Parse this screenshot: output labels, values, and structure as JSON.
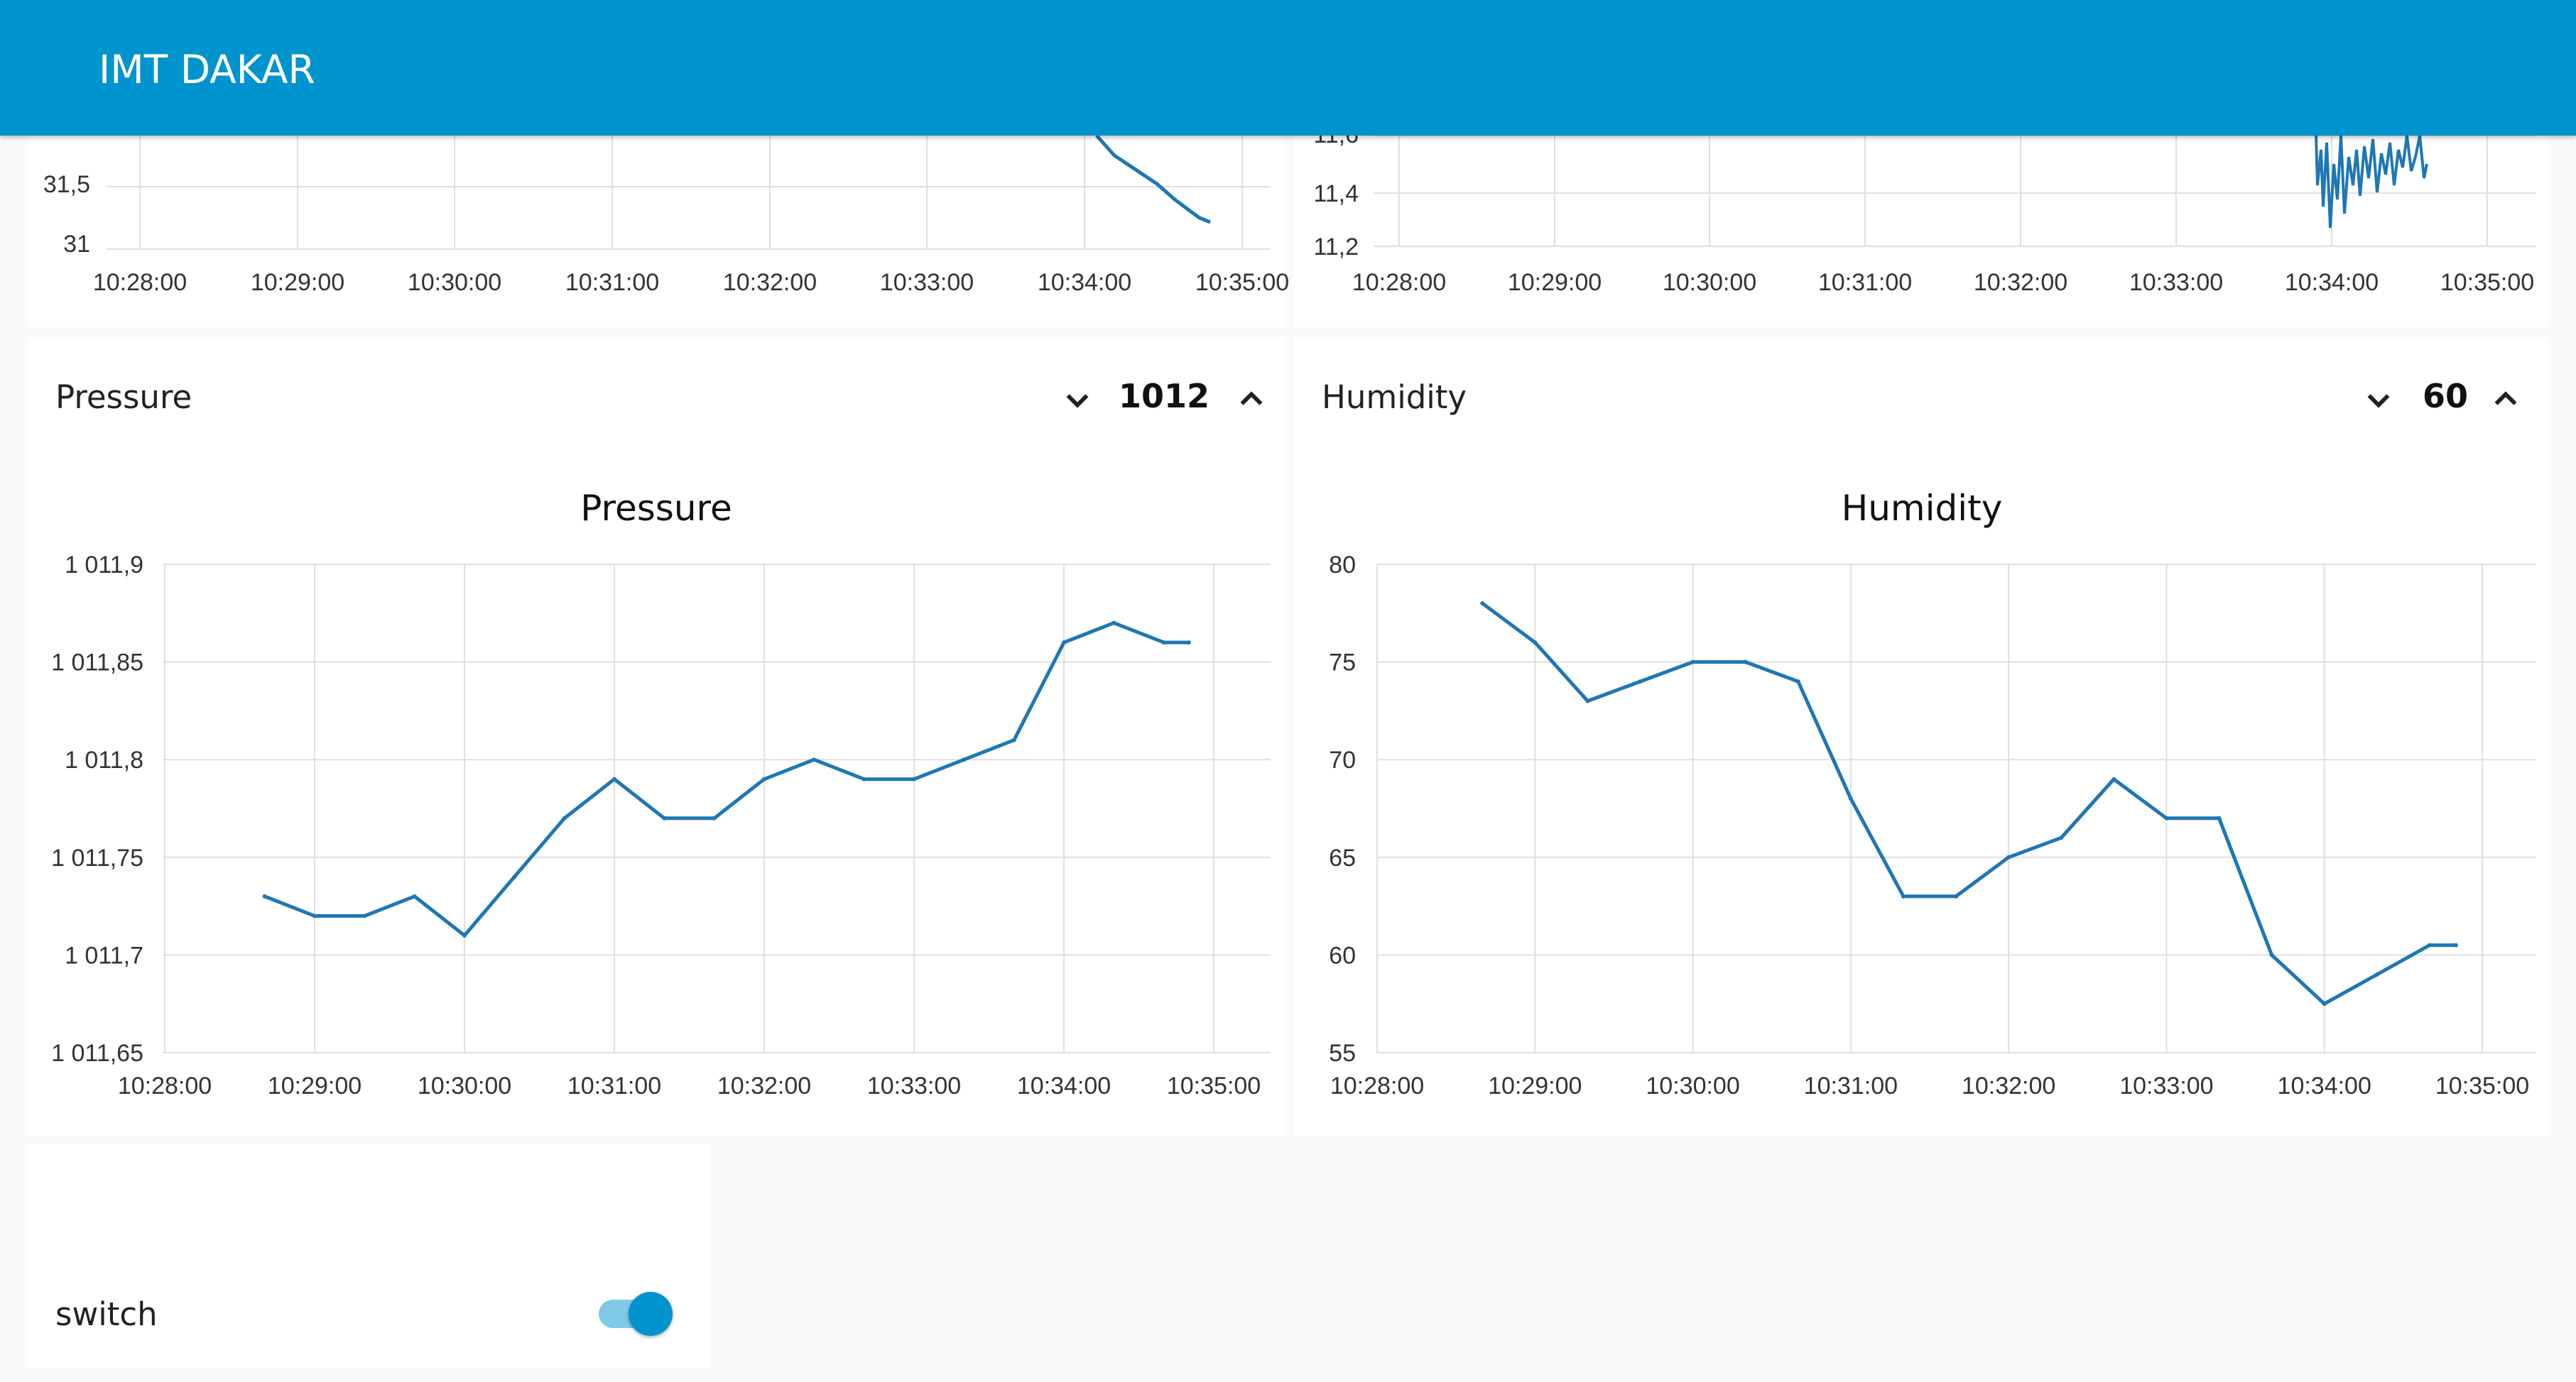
{
  "header": {
    "title": "IMT DAKAR"
  },
  "colors": {
    "header": "#0094ce",
    "line": "#1f77b4",
    "grid": "#e0e0e0",
    "switch_on": "#0094ce"
  },
  "top_left_chart": {
    "y_ticks": [
      "31,5",
      "31"
    ],
    "x_ticks": [
      "10:28:00",
      "10:29:00",
      "10:30:00",
      "10:31:00",
      "10:32:00",
      "10:33:00",
      "10:34:00",
      "10:35:00"
    ]
  },
  "top_right_chart": {
    "y_ticks": [
      "11,6",
      "11,4",
      "11,2"
    ],
    "x_ticks": [
      "10:28:00",
      "10:29:00",
      "10:30:00",
      "10:31:00",
      "10:32:00",
      "10:33:00",
      "10:34:00",
      "10:35:00"
    ]
  },
  "pressure": {
    "label": "Pressure",
    "value": "1012",
    "down_icon": "chevron-down-icon",
    "up_icon": "chevron-up-icon"
  },
  "humidity": {
    "label": "Humidity",
    "value": "60",
    "down_icon": "chevron-down-icon",
    "up_icon": "chevron-up-icon"
  },
  "switch": {
    "label": "switch",
    "state": "on"
  },
  "chart_data": [
    {
      "type": "line",
      "title": "Pressure",
      "x_ticks": [
        "10:28:00",
        "10:29:00",
        "10:30:00",
        "10:31:00",
        "10:32:00",
        "10:33:00",
        "10:34:00",
        "10:35:00"
      ],
      "y_ticks": [
        "1 011,9",
        "1 011,85",
        "1 011,8",
        "1 011,75",
        "1 011,7",
        "1 011,65"
      ],
      "ylim": [
        1011.65,
        1011.9
      ],
      "series": [
        {
          "x": [
            "10:28:40",
            "10:29:00",
            "10:29:20",
            "10:29:40",
            "10:30:00",
            "10:30:20",
            "10:30:40",
            "10:31:00",
            "10:31:20",
            "10:31:40",
            "10:32:00",
            "10:32:20",
            "10:32:40",
            "10:33:00",
            "10:33:20",
            "10:33:40",
            "10:34:00",
            "10:34:20",
            "10:34:40",
            "10:34:50"
          ],
          "y": [
            1011.73,
            1011.72,
            1011.72,
            1011.73,
            1011.71,
            1011.74,
            1011.77,
            1011.79,
            1011.77,
            1011.77,
            1011.79,
            1011.8,
            1011.79,
            1011.79,
            1011.8,
            1011.81,
            1011.86,
            1011.87,
            1011.86,
            1011.86
          ]
        }
      ]
    },
    {
      "type": "line",
      "title": "Humidity",
      "x_ticks": [
        "10:28:00",
        "10:29:00",
        "10:30:00",
        "10:31:00",
        "10:32:00",
        "10:33:00",
        "10:34:00",
        "10:35:00"
      ],
      "y_ticks": [
        "80",
        "75",
        "70",
        "65",
        "60",
        "55"
      ],
      "ylim": [
        55,
        80
      ],
      "series": [
        {
          "x": [
            "10:28:40",
            "10:29:00",
            "10:29:20",
            "10:29:40",
            "10:30:00",
            "10:30:20",
            "10:30:40",
            "10:31:00",
            "10:31:20",
            "10:31:40",
            "10:32:00",
            "10:32:20",
            "10:32:40",
            "10:33:00",
            "10:33:20",
            "10:33:40",
            "10:34:00",
            "10:34:20",
            "10:34:40",
            "10:34:50"
          ],
          "y": [
            78,
            76,
            73,
            74,
            75,
            75,
            74,
            68,
            63,
            63,
            65,
            66,
            69,
            67,
            67,
            60,
            57.5,
            59,
            60.5,
            60.5
          ]
        }
      ]
    }
  ]
}
